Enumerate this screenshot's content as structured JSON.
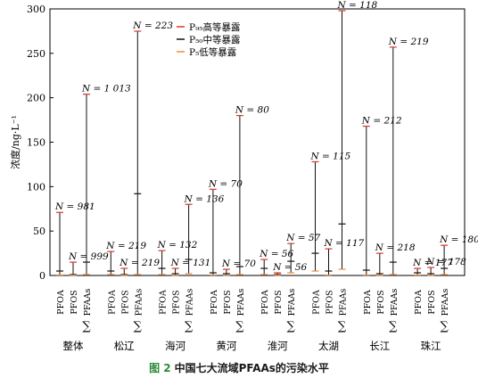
{
  "caption": {
    "figure_label": "图 2",
    "title": "中国七大流域PFAAs的污染水平"
  },
  "colors": {
    "p95": "#d9352a",
    "p50": "#111111",
    "p5": "#f08a3a",
    "axis": "#000000"
  },
  "chart_data": {
    "type": "range",
    "ylabel": "浓度/ng·L⁻¹",
    "ylim": [
      0,
      300
    ],
    "yticks": [
      0,
      50,
      100,
      150,
      200,
      250,
      300
    ],
    "legend": {
      "placement": "top-center",
      "items": [
        {
          "key": "p95",
          "label": "P₉₅高等暴露"
        },
        {
          "key": "p50",
          "label": "P₅₀中等暴露"
        },
        {
          "key": "p5",
          "label": "P₅低等暴露"
        }
      ]
    },
    "sum_symbol": "∑",
    "groups": [
      {
        "name": "整体",
        "compounds": [
          {
            "label": "PFOA",
            "p95": 71,
            "p50": 5,
            "p5": 0.5,
            "n_label": "N = 981"
          },
          {
            "label": "PFOS",
            "p95": 15,
            "p50": 1,
            "p5": 0.3,
            "n_label": "N = 999"
          },
          {
            "label": "PFAAs",
            "p95": 204,
            "p50": 15,
            "p5": 1,
            "n_label": "N = 1 013"
          }
        ]
      },
      {
        "name": "松辽",
        "compounds": [
          {
            "label": "PFOA",
            "p95": 27,
            "p50": 5,
            "p5": 1,
            "n_label": "N = 219"
          },
          {
            "label": "PFOS",
            "p95": 8,
            "p50": 1,
            "p5": 0.3,
            "n_label": "N = 219"
          },
          {
            "label": "PFAAs",
            "p95": 275,
            "p50": 92,
            "p5": 1,
            "n_label": "N = 223"
          }
        ]
      },
      {
        "name": "海河",
        "compounds": [
          {
            "label": "PFOA",
            "p95": 28,
            "p50": 8,
            "p5": 1,
            "n_label": "N = 132"
          },
          {
            "label": "PFOS",
            "p95": 8,
            "p50": 2,
            "p5": 0.3,
            "n_label": "N = 131"
          },
          {
            "label": "PFAAs",
            "p95": 80,
            "p50": 18,
            "p5": 2,
            "n_label": "N = 136"
          }
        ]
      },
      {
        "name": "黄河",
        "compounds": [
          {
            "label": "PFOA",
            "p95": 97,
            "p50": 3,
            "p5": 0.5,
            "n_label": "N = 70"
          },
          {
            "label": "PFOS",
            "p95": 7,
            "p50": 2,
            "p5": 0.3,
            "n_label": "N = 70"
          },
          {
            "label": "PFAAs",
            "p95": 180,
            "p50": 10,
            "p5": 1,
            "n_label": "N = 80"
          }
        ]
      },
      {
        "name": "淮河",
        "compounds": [
          {
            "label": "PFOA",
            "p95": 18,
            "p50": 8,
            "p5": 1,
            "n_label": "N = 56"
          },
          {
            "label": "PFOS",
            "p95": 3,
            "p50": 1,
            "p5": 0.3,
            "n_label": "N = 56"
          },
          {
            "label": "PFAAs",
            "p95": 36,
            "p50": 16,
            "p5": 3,
            "n_label": "N = 57"
          }
        ]
      },
      {
        "name": "太湖",
        "compounds": [
          {
            "label": "PFOA",
            "p95": 128,
            "p50": 25,
            "p5": 5,
            "n_label": "N = 115"
          },
          {
            "label": "PFOS",
            "p95": 30,
            "p50": 5,
            "p5": 0.5,
            "n_label": "N = 117"
          },
          {
            "label": "PFAAs",
            "p95": 298,
            "p50": 58,
            "p5": 7,
            "n_label": "N = 118"
          }
        ]
      },
      {
        "name": "长江",
        "compounds": [
          {
            "label": "PFOA",
            "p95": 168,
            "p50": 6,
            "p5": 0.5,
            "n_label": "N = 212"
          },
          {
            "label": "PFOS",
            "p95": 25,
            "p50": 2,
            "p5": 0.3,
            "n_label": "N = 218"
          },
          {
            "label": "PFAAs",
            "p95": 257,
            "p50": 15,
            "p5": 1,
            "n_label": "N = 219"
          }
        ]
      },
      {
        "name": "珠江",
        "compounds": [
          {
            "label": "PFOA",
            "p95": 8,
            "p50": 3,
            "p5": 0.5,
            "n_label": "N = 177"
          },
          {
            "label": "PFOS",
            "p95": 9,
            "p50": 2,
            "p5": 0.3,
            "n_label": "N = 178"
          },
          {
            "label": "PFAAs",
            "p95": 34,
            "p50": 8,
            "p5": 1,
            "n_label": "N = 180"
          }
        ]
      }
    ]
  }
}
